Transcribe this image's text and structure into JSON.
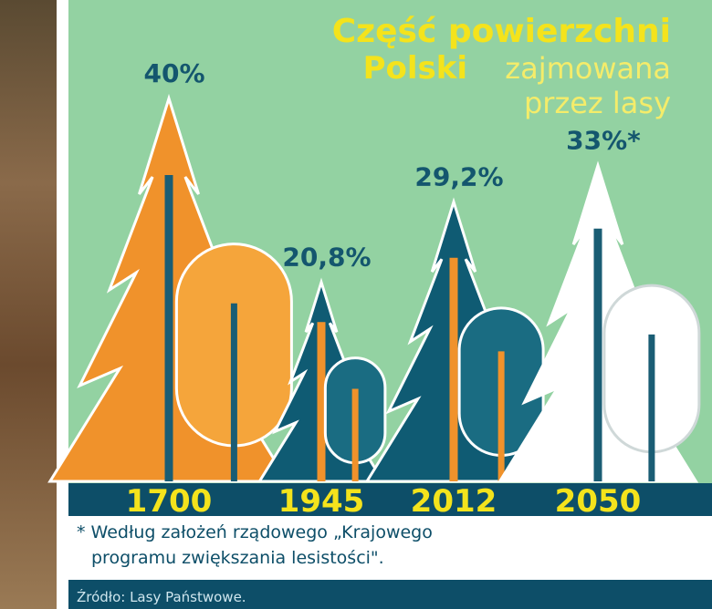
{
  "chart_data": {
    "type": "trees",
    "title": [
      "Część powierzchni",
      "Polski",
      "zajmowana",
      "przez lasy"
    ],
    "categories": [
      "1700",
      "1945",
      "2012",
      "2050"
    ],
    "values": [
      40,
      20.8,
      29.2,
      33
    ],
    "value_labels": [
      "40%",
      "20,8%",
      "29,2%",
      "33%*"
    ],
    "colors": [
      "#f0922b",
      "#0f5b73",
      "#0f5b73",
      "#ffffff"
    ],
    "footnote": [
      "* Według założeń rządowego „Krajowego",
      "programu zwiększania lesistości\"."
    ],
    "source": "Źródło: Lasy Państwowe."
  }
}
